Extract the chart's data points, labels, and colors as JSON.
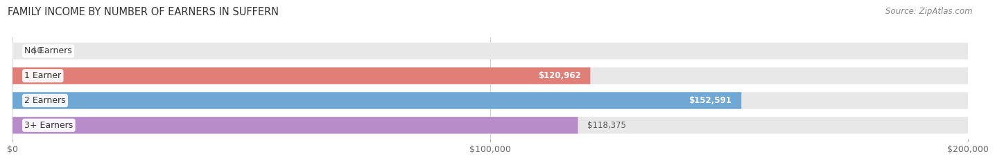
{
  "title": "FAMILY INCOME BY NUMBER OF EARNERS IN SUFFERN",
  "source": "Source: ZipAtlas.com",
  "categories": [
    "No Earners",
    "1 Earner",
    "2 Earners",
    "3+ Earners"
  ],
  "values": [
    0,
    120962,
    152591,
    118375
  ],
  "value_labels": [
    "$0",
    "$120,962",
    "$152,591",
    "$118,375"
  ],
  "bar_colors": [
    "#f0c8a0",
    "#e07f78",
    "#6fa8d4",
    "#b88cc8"
  ],
  "bar_bg_color": "#e8e8e8",
  "xlim": [
    0,
    200000
  ],
  "xtick_values": [
    0,
    100000,
    200000
  ],
  "xtick_labels": [
    "$0",
    "$100,000",
    "$200,000"
  ],
  "title_fontsize": 10.5,
  "source_fontsize": 8.5,
  "bar_label_fontsize": 8.5,
  "category_fontsize": 9,
  "tick_fontsize": 9,
  "fig_bg_color": "#ffffff",
  "plot_bg_color": "#ffffff",
  "label_color_inside": [
    "#666666",
    "#ffffff",
    "#ffffff",
    "#555555"
  ],
  "label_bg_colors": [
    "none",
    "#e07f78",
    "#6fa8d4",
    "none"
  ]
}
